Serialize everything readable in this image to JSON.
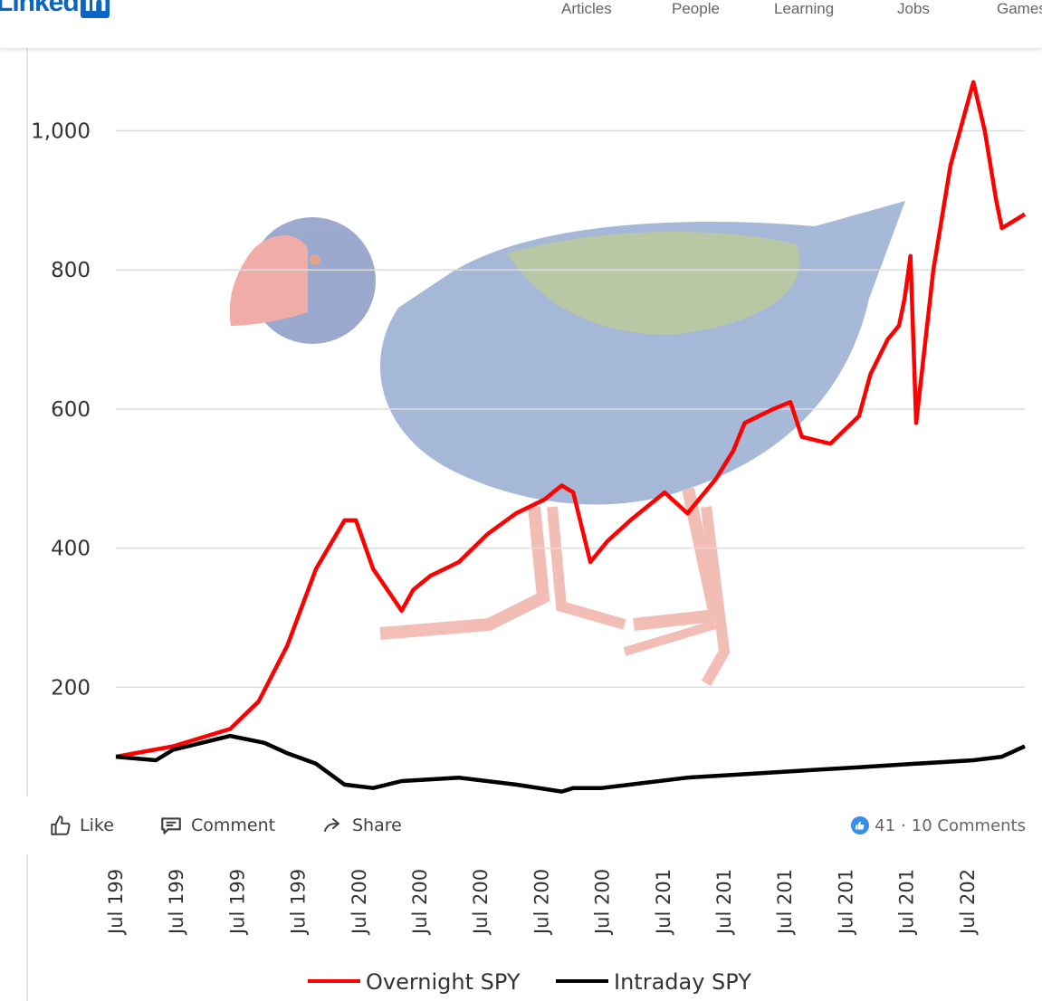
{
  "nav": {
    "logo_text": "Linked",
    "logo_box": "in",
    "items": [
      {
        "label": "Articles"
      },
      {
        "label": "People"
      },
      {
        "label": "Learning"
      },
      {
        "label": "Jobs"
      },
      {
        "label": "Games"
      }
    ]
  },
  "post_actions": {
    "like_label": "Like",
    "comment_label": "Comment",
    "share_label": "Share",
    "reactions_count": "41",
    "separator": "·",
    "comments_label": "10 Comments"
  },
  "icons": {
    "like": "thumbs-up-icon",
    "comment": "speech-bubble-icon",
    "share": "share-arrow-icon",
    "reaction": "like-reaction-icon"
  },
  "colors": {
    "overnight": "#ff0000",
    "intraday": "#000000",
    "linkedin_blue": "#0a66c2"
  },
  "chart_data": {
    "type": "line",
    "title": "",
    "xlabel": "",
    "ylabel": "",
    "ylim": [
      0,
      1100
    ],
    "y_ticks": [
      "200",
      "400",
      "600",
      "800",
      "1,000"
    ],
    "x_ticks": [
      "Jul 199",
      "Jul 199",
      "Jul 199",
      "Jul 199",
      "Jul 200",
      "Jul 200",
      "Jul 200",
      "Jul 200",
      "Jul 200",
      "Jul 201",
      "Jul 201",
      "Jul 201",
      "Jul 201",
      "Jul 201",
      "Jul 202"
    ],
    "grid": true,
    "legend_position": "bottom",
    "series": [
      {
        "name": "Overnight SPY",
        "x": [
          0,
          1,
          2,
          2.5,
          3,
          3.5,
          4,
          4.2,
          4.5,
          5,
          5.2,
          5.5,
          6,
          6.5,
          7,
          7.5,
          7.8,
          8,
          8.3,
          8.6,
          9,
          9.3,
          9.6,
          10,
          10.5,
          10.8,
          11,
          11.5,
          11.8,
          12,
          12.5,
          13,
          13.2,
          13.5,
          13.7,
          13.8,
          13.9,
          14,
          14.3,
          14.6,
          14.8,
          15,
          15.2,
          15.4,
          15.5,
          15.7,
          15.9
        ],
        "values": [
          100,
          115,
          140,
          180,
          260,
          370,
          440,
          440,
          370,
          310,
          340,
          360,
          380,
          420,
          450,
          470,
          490,
          480,
          380,
          410,
          440,
          460,
          480,
          450,
          500,
          540,
          580,
          600,
          610,
          560,
          550,
          590,
          650,
          700,
          720,
          760,
          820,
          580,
          800,
          950,
          1010,
          1070,
          1000,
          900,
          860,
          870,
          880
        ]
      },
      {
        "name": "Intraday SPY",
        "x": [
          0,
          0.7,
          1,
          1.5,
          2,
          2.6,
          3,
          3.5,
          4,
          4.5,
          5,
          6,
          7,
          7.8,
          8,
          8.5,
          9,
          10,
          11,
          12,
          13,
          14,
          15,
          15.5,
          15.9
        ],
        "values": [
          100,
          95,
          110,
          120,
          130,
          120,
          105,
          90,
          60,
          55,
          65,
          70,
          60,
          50,
          55,
          55,
          60,
          70,
          75,
          80,
          85,
          90,
          95,
          100,
          115
        ]
      }
    ]
  }
}
